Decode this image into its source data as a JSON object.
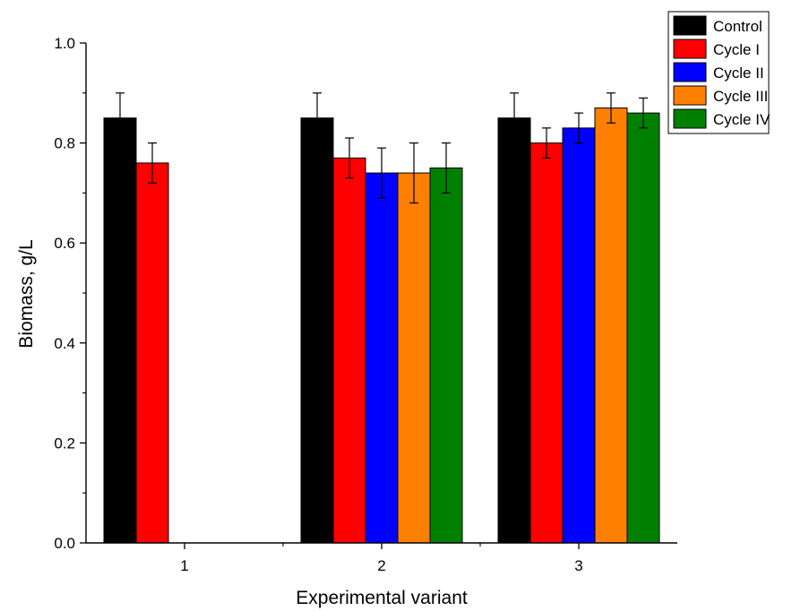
{
  "chart_data": {
    "type": "bar",
    "categories": [
      "1",
      "2",
      "3"
    ],
    "series": [
      {
        "name": "Control",
        "color": "#000000",
        "values": [
          0.85,
          0.85,
          0.85
        ],
        "errors": [
          0.05,
          0.05,
          0.05
        ]
      },
      {
        "name": "Cycle I",
        "color": "#ff0000",
        "values": [
          0.76,
          0.77,
          0.8
        ],
        "errors": [
          0.04,
          0.04,
          0.03
        ]
      },
      {
        "name": "Cycle II",
        "color": "#0000ff",
        "values": [
          null,
          0.74,
          0.83
        ],
        "errors": [
          null,
          0.05,
          0.03
        ]
      },
      {
        "name": "Cycle III",
        "color": "#ff8000",
        "values": [
          null,
          0.74,
          0.87
        ],
        "errors": [
          null,
          0.06,
          0.03
        ]
      },
      {
        "name": "Cycle IV",
        "color": "#008000",
        "values": [
          null,
          0.75,
          0.86
        ],
        "errors": [
          null,
          0.05,
          0.03
        ]
      }
    ],
    "title": "",
    "xlabel": "Experimental variant",
    "ylabel": "Biomass, g/L",
    "ylim": [
      0,
      1.0
    ],
    "yticks": [
      "0.0",
      "0.2",
      "0.4",
      "0.6",
      "0.8",
      "1.0"
    ],
    "grid": false,
    "legend": "top-right"
  }
}
